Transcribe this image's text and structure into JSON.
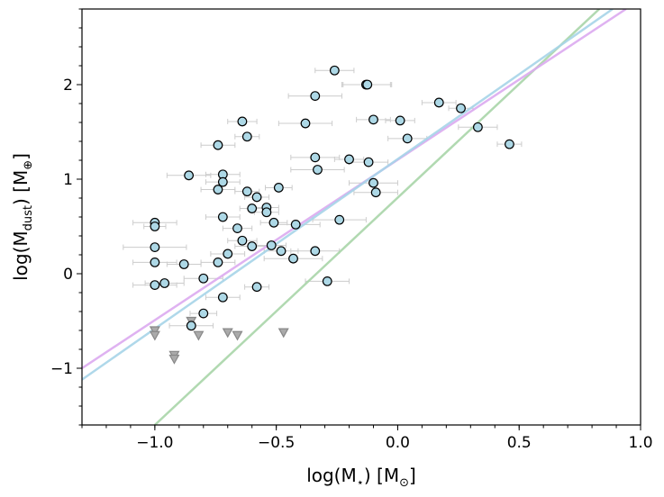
{
  "chart_data": {
    "type": "scatter",
    "title": "",
    "xlabel": {
      "main": "log(M",
      "sub": "⋆",
      "tail": ") [M",
      "unit": "⊙",
      "end": "]"
    },
    "ylabel": {
      "main": "log(M",
      "sub": "dust",
      "tail": ") [M",
      "unit": "⊕",
      "end": "]"
    },
    "xlim": [
      -1.3,
      1.0
    ],
    "ylim": [
      -1.6,
      2.8
    ],
    "xticks": [
      -1.0,
      -0.5,
      0.0,
      0.5,
      1.0
    ],
    "xtick_labels": [
      "−1.0",
      "−0.5",
      "0.0",
      "0.5",
      "1.0"
    ],
    "yticks": [
      -1,
      0,
      1,
      2
    ],
    "ytick_labels": [
      "−1",
      "0",
      "1",
      "2"
    ],
    "x_minor_step": 0.1,
    "y_minor_step": 0.2,
    "grid": false,
    "colors": {
      "point_fill": "#add8e6",
      "point_edge": "#000000",
      "errorbar": "#cccccc",
      "limit_fill": "#aaaaaa",
      "limit_edge": "#888888"
    },
    "detections": [
      {
        "x": -0.26,
        "y": 2.15,
        "xerr": 0.08
      },
      {
        "x": -0.13,
        "y": 2.0,
        "xerr": 0.1
      },
      {
        "x": -0.125,
        "y": 2.0,
        "xerr": 0.1
      },
      {
        "x": -0.34,
        "y": 1.88,
        "xerr": 0.11
      },
      {
        "x": 0.17,
        "y": 1.81,
        "xerr": 0.07
      },
      {
        "x": 0.26,
        "y": 1.75,
        "xerr": 0.05
      },
      {
        "x": -0.64,
        "y": 1.61,
        "xerr": 0.06
      },
      {
        "x": -0.38,
        "y": 1.59,
        "xerr": 0.11
      },
      {
        "x": -0.1,
        "y": 1.63,
        "xerr": 0.07
      },
      {
        "x": 0.01,
        "y": 1.62,
        "xerr": 0.06
      },
      {
        "x": 0.33,
        "y": 1.55,
        "xerr": 0.08
      },
      {
        "x": -0.62,
        "y": 1.45,
        "xerr": 0.05
      },
      {
        "x": 0.04,
        "y": 1.43,
        "xerr": 0.08
      },
      {
        "x": -0.74,
        "y": 1.36,
        "xerr": 0.07
      },
      {
        "x": 0.46,
        "y": 1.37,
        "xerr": 0.05
      },
      {
        "x": -0.34,
        "y": 1.23,
        "xerr": 0.1
      },
      {
        "x": -0.2,
        "y": 1.21,
        "xerr": 0.06
      },
      {
        "x": -0.12,
        "y": 1.18,
        "xerr": 0.08
      },
      {
        "x": -0.33,
        "y": 1.1,
        "xerr": 0.11
      },
      {
        "x": -0.86,
        "y": 1.04,
        "xerr": 0.09
      },
      {
        "x": -0.72,
        "y": 1.05,
        "xerr": 0.07
      },
      {
        "x": -0.72,
        "y": 0.97,
        "xerr": 0.07
      },
      {
        "x": -0.74,
        "y": 0.89,
        "xerr": 0.07
      },
      {
        "x": -0.49,
        "y": 0.91,
        "xerr": 0.055
      },
      {
        "x": -0.1,
        "y": 0.96,
        "xerr": 0.1
      },
      {
        "x": -0.09,
        "y": 0.86,
        "xerr": 0.09
      },
      {
        "x": -0.62,
        "y": 0.87,
        "xerr": 0.05
      },
      {
        "x": -0.58,
        "y": 0.81,
        "xerr": 0.05
      },
      {
        "x": -0.54,
        "y": 0.7,
        "xerr": 0.05
      },
      {
        "x": -0.54,
        "y": 0.65,
        "xerr": 0.05
      },
      {
        "x": -0.6,
        "y": 0.69,
        "xerr": 0.05
      },
      {
        "x": -0.72,
        "y": 0.6,
        "xerr": 0.07
      },
      {
        "x": -0.51,
        "y": 0.54,
        "xerr": 0.055
      },
      {
        "x": -1.0,
        "y": 0.54,
        "xerr": 0.09
      },
      {
        "x": -1.0,
        "y": 0.5,
        "xerr": 0.045
      },
      {
        "x": -0.24,
        "y": 0.57,
        "xerr": 0.11
      },
      {
        "x": -0.42,
        "y": 0.52,
        "xerr": 0.1
      },
      {
        "x": -0.66,
        "y": 0.48,
        "xerr": 0.06
      },
      {
        "x": -0.64,
        "y": 0.35,
        "xerr": 0.06
      },
      {
        "x": -0.52,
        "y": 0.3,
        "xerr": 0.06
      },
      {
        "x": -0.6,
        "y": 0.29,
        "xerr": 0.07
      },
      {
        "x": -1.0,
        "y": 0.28,
        "xerr": 0.13
      },
      {
        "x": -0.48,
        "y": 0.24,
        "xerr": 0.07
      },
      {
        "x": -0.34,
        "y": 0.24,
        "xerr": 0.1
      },
      {
        "x": -0.43,
        "y": 0.16,
        "xerr": 0.12
      },
      {
        "x": -0.7,
        "y": 0.21,
        "xerr": 0.07
      },
      {
        "x": -0.74,
        "y": 0.12,
        "xerr": 0.07
      },
      {
        "x": -0.88,
        "y": 0.1,
        "xerr": 0.07
      },
      {
        "x": -1.0,
        "y": 0.12,
        "xerr": 0.09
      },
      {
        "x": -0.8,
        "y": -0.05,
        "xerr": 0.08
      },
      {
        "x": -0.96,
        "y": -0.1,
        "xerr": 0.08
      },
      {
        "x": -1.0,
        "y": -0.12,
        "xerr": 0.09
      },
      {
        "x": -0.58,
        "y": -0.14,
        "xerr": 0.05
      },
      {
        "x": -0.29,
        "y": -0.08,
        "xerr": 0.09
      },
      {
        "x": -0.72,
        "y": -0.25,
        "xerr": 0.07
      },
      {
        "x": -0.8,
        "y": -0.42,
        "xerr": 0.055
      },
      {
        "x": -0.85,
        "y": -0.55,
        "xerr": 0.09
      }
    ],
    "upper_limits": [
      {
        "x": -1.0,
        "y": -0.6
      },
      {
        "x": -1.0,
        "y": -0.65
      },
      {
        "x": -0.85,
        "y": -0.5
      },
      {
        "x": -0.82,
        "y": -0.65
      },
      {
        "x": -0.7,
        "y": -0.62
      },
      {
        "x": -0.66,
        "y": -0.65
      },
      {
        "x": -0.47,
        "y": -0.62
      },
      {
        "x": -0.92,
        "y": -0.86
      },
      {
        "x": -0.92,
        "y": -0.9
      }
    ],
    "lines": [
      {
        "color": "#a8d5a8",
        "x": [
          -1.0,
          0.83
        ],
        "y": [
          -1.6,
          2.8
        ]
      },
      {
        "color": "#dcaaf0",
        "x": [
          -1.3,
          0.94
        ],
        "y": [
          -1.0,
          2.8
        ]
      },
      {
        "color": "#a6d4e8",
        "x": [
          -1.3,
          0.885
        ],
        "y": [
          -1.12,
          2.8
        ]
      }
    ]
  }
}
